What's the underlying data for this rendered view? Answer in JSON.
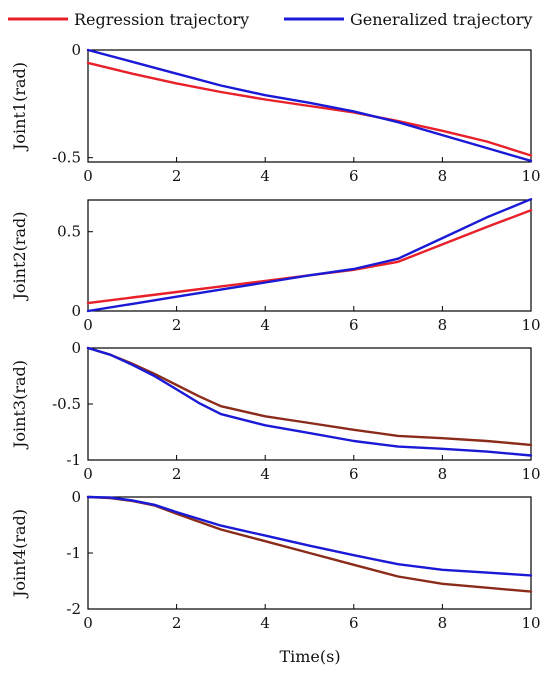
{
  "legend": {
    "items": [
      {
        "label": "Regression trajectory",
        "color": "#e8202a"
      },
      {
        "label": "Generalized trajectory",
        "color": "#1a1ad6"
      }
    ]
  },
  "xlabel": "Time(s)",
  "chart_data": [
    {
      "type": "line",
      "ylabel": "Joint1(rad)",
      "xlim": [
        0,
        10
      ],
      "ylim": [
        -0.52,
        0
      ],
      "xticks": [
        0,
        2,
        4,
        6,
        8,
        10
      ],
      "xticklabels": [
        "0",
        "2",
        "4",
        "6",
        "8",
        "10"
      ],
      "yticks": [
        0,
        -0.5
      ],
      "yticklabels": [
        "0",
        "-0.5"
      ],
      "series": [
        {
          "name": "Regression trajectory",
          "color": "#e8202a",
          "x": [
            0,
            1,
            2,
            3,
            4,
            5,
            6,
            7,
            8,
            9,
            10
          ],
          "y": [
            -0.06,
            -0.11,
            -0.155,
            -0.195,
            -0.23,
            -0.26,
            -0.29,
            -0.33,
            -0.375,
            -0.425,
            -0.49
          ]
        },
        {
          "name": "Generalized trajectory",
          "color": "#1a1ad6",
          "x": [
            0,
            1,
            2,
            3,
            4,
            5,
            6,
            7,
            8,
            9,
            10
          ],
          "y": [
            0,
            -0.055,
            -0.11,
            -0.165,
            -0.21,
            -0.245,
            -0.285,
            -0.335,
            -0.395,
            -0.455,
            -0.515
          ]
        }
      ]
    },
    {
      "type": "line",
      "ylabel": "Joint2(rad)",
      "xlim": [
        0,
        10
      ],
      "ylim": [
        0,
        0.7
      ],
      "xticks": [
        0,
        2,
        4,
        6,
        8,
        10
      ],
      "xticklabels": [
        "0",
        "2",
        "4",
        "6",
        "8",
        "10"
      ],
      "yticks": [
        0,
        0.5
      ],
      "yticklabels": [
        "0",
        "0.5"
      ],
      "series": [
        {
          "name": "Regression trajectory",
          "color": "#e8202a",
          "x": [
            0,
            1,
            2,
            3,
            4,
            5,
            6,
            7,
            8,
            9,
            10
          ],
          "y": [
            0.05,
            0.085,
            0.12,
            0.155,
            0.19,
            0.225,
            0.26,
            0.31,
            0.42,
            0.53,
            0.635
          ]
        },
        {
          "name": "Generalized trajectory",
          "color": "#1a1ad6",
          "x": [
            0,
            1,
            2,
            3,
            4,
            5,
            6,
            7,
            8,
            9,
            10
          ],
          "y": [
            0,
            0.045,
            0.09,
            0.135,
            0.18,
            0.225,
            0.265,
            0.33,
            0.46,
            0.59,
            0.705
          ]
        }
      ]
    },
    {
      "type": "line",
      "ylabel": "Joint3(rad)",
      "xlim": [
        0,
        10
      ],
      "ylim": [
        -1,
        0
      ],
      "xticks": [
        0,
        2,
        4,
        6,
        8,
        10
      ],
      "xticklabels": [
        "0",
        "2",
        "4",
        "6",
        "8",
        "10"
      ],
      "yticks": [
        0,
        -0.5,
        -1
      ],
      "yticklabels": [
        "0",
        "-0.5",
        "-1"
      ],
      "series": [
        {
          "name": "Regression trajectory",
          "color": "#8b2b1a",
          "x": [
            0,
            0.5,
            1,
            1.5,
            2,
            2.5,
            3,
            4,
            5,
            6,
            7,
            8,
            9,
            10
          ],
          "y": [
            0,
            -0.06,
            -0.14,
            -0.23,
            -0.33,
            -0.43,
            -0.52,
            -0.61,
            -0.67,
            -0.73,
            -0.785,
            -0.805,
            -0.83,
            -0.865
          ]
        },
        {
          "name": "Generalized trajectory",
          "color": "#1a1ad6",
          "x": [
            0,
            0.5,
            1,
            1.5,
            2,
            2.5,
            3,
            4,
            5,
            6,
            7,
            8,
            9,
            10
          ],
          "y": [
            0,
            -0.06,
            -0.15,
            -0.25,
            -0.37,
            -0.49,
            -0.59,
            -0.69,
            -0.76,
            -0.83,
            -0.88,
            -0.9,
            -0.925,
            -0.96
          ]
        }
      ]
    },
    {
      "type": "line",
      "ylabel": "Joint4(rad)",
      "xlim": [
        0,
        10
      ],
      "ylim": [
        -2,
        0
      ],
      "xticks": [
        0,
        2,
        4,
        6,
        8,
        10
      ],
      "xticklabels": [
        "0",
        "2",
        "4",
        "6",
        "8",
        "10"
      ],
      "yticks": [
        0,
        -1,
        -2
      ],
      "yticklabels": [
        "0",
        "-1",
        "-2"
      ],
      "series": [
        {
          "name": "Regression trajectory",
          "color": "#8b2b1a",
          "x": [
            0,
            0.5,
            1,
            1.5,
            2,
            3,
            4,
            5,
            6,
            7,
            8,
            9,
            10
          ],
          "y": [
            0,
            -0.02,
            -0.07,
            -0.15,
            -0.3,
            -0.58,
            -0.79,
            -1.0,
            -1.21,
            -1.42,
            -1.55,
            -1.62,
            -1.69
          ]
        },
        {
          "name": "Generalized trajectory",
          "color": "#1a1ad6",
          "x": [
            0,
            0.5,
            1,
            1.5,
            2,
            3,
            4,
            5,
            6,
            7,
            8,
            9,
            10
          ],
          "y": [
            0,
            -0.01,
            -0.06,
            -0.14,
            -0.27,
            -0.51,
            -0.69,
            -0.87,
            -1.04,
            -1.2,
            -1.3,
            -1.35,
            -1.4
          ]
        }
      ]
    }
  ]
}
